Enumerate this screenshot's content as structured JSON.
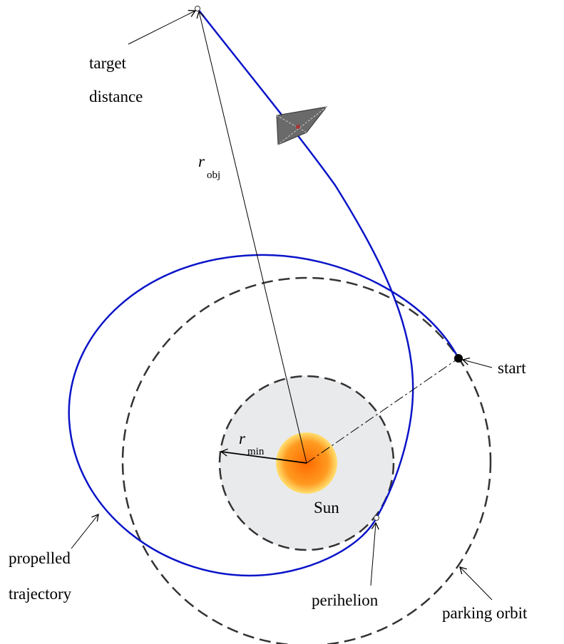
{
  "labels": {
    "target": "target",
    "distance": "distance",
    "r_obj": "r",
    "r_obj_sub": "obj",
    "r_min": "r",
    "r_min_sub": "min",
    "sun": "Sun",
    "start": "start",
    "propelled": "propelled",
    "trajectory": "trajectory",
    "perihelion": "perihelion",
    "parking_orbit": "parking orbit"
  }
}
